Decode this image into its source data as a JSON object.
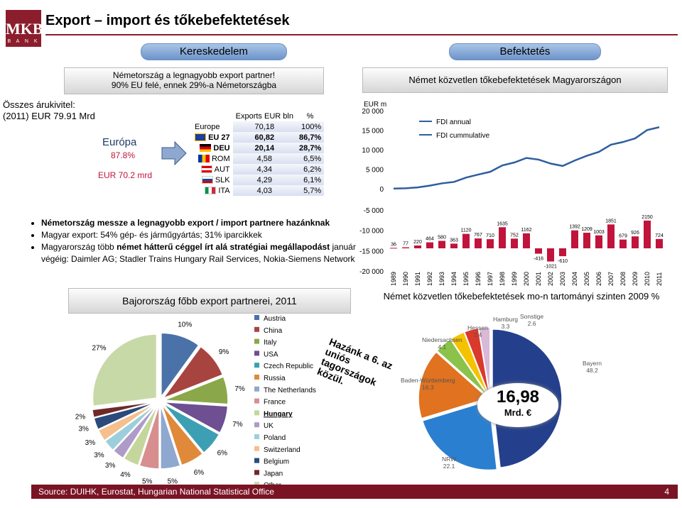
{
  "logo": {
    "text": "MKB",
    "sub": "B A N K"
  },
  "title": "Export – import és tőkebefektetések",
  "left_header": "Kereskedelem",
  "right_header": "Befektetés",
  "left_box": {
    "line1": "Németország a legnagyobb export partner!",
    "line2": "90% EU felé, ennek 29%-a Németországba"
  },
  "right_box": "Német közvetlen tőkebefektetések Magyarországon",
  "summary": {
    "line1": "Összes árukivitel:",
    "line2": "(2011)  EUR 79.91 Mrd",
    "europe": "Európa",
    "europe_pct": "87.8%",
    "europe_value": "EUR 70.2 mrd"
  },
  "exports_table": {
    "headers": [
      "Exports EUR bln",
      "%"
    ],
    "rows": [
      {
        "label": "Europe",
        "value": "70,18",
        "pct": "100%",
        "flag": ""
      },
      {
        "label": "EU 27",
        "value": "60,82",
        "pct": "86,7%",
        "flag": "eu"
      },
      {
        "label": "DEU",
        "value": "20,14",
        "pct": "28,7%",
        "flag": "de"
      },
      {
        "label": "ROM",
        "value": "4,58",
        "pct": "6,5%",
        "flag": "ro"
      },
      {
        "label": "AUT",
        "value": "4,34",
        "pct": "6,2%",
        "flag": "at"
      },
      {
        "label": "SLK",
        "value": "4,29",
        "pct": "6,1%",
        "flag": "sk"
      },
      {
        "label": "ITA",
        "value": "4,03",
        "pct": "5,7%",
        "flag": "it"
      }
    ]
  },
  "bullets": {
    "b1": "Németország messze a legnagyobb export / import partnere hazánknak",
    "b2": "Magyar export: 54% gép- és járműgyártás; 31% iparcikkek",
    "b3a": "Magyarország több ",
    "b3b": "német hátterű céggel írt alá stratégiai megállapodást",
    "b3c": " január végéig: Daimler AG; Stadler Trains Hungary Rail Services, Nokia-Siemens Network"
  },
  "pie_title": "Bajorország főbb export partnerei, 2011",
  "bottom_right_title": "Német közvetlen tőkebefektetések mo-n tartományi szinten 2009 %",
  "stamp_text": "Hazánk a 6. az uniós tagországok közül.",
  "bubble": {
    "value": "16,98",
    "unit": "Mrd. €"
  },
  "regions": [
    {
      "name": "Hamburg",
      "value": "3.3"
    },
    {
      "name": "Sonstige",
      "value": "2.6"
    },
    {
      "name": "Hessen",
      "value": "3.4"
    },
    {
      "name": "Niedersachsen",
      "value": "4.1"
    },
    {
      "name": "Bayern",
      "value": "48.2"
    },
    {
      "name": "Baden-Württemberg",
      "value": "16.3"
    },
    {
      "name": "NRW",
      "value": "22.1"
    }
  ],
  "source": "Source: DUIHK, Eurostat, Hungarian National Statistical Office",
  "page_number": "4",
  "chart_data": [
    {
      "type": "line",
      "title": "",
      "ylabel": "EUR m",
      "ylim": [
        0,
        20000
      ],
      "yticks": [
        "20 000",
        "15 000",
        "10 000",
        "5 000",
        "0"
      ],
      "series": [
        {
          "name": "FDI annual",
          "color": "#2e5e9e"
        },
        {
          "name": "FDI cummulative",
          "color": "#2e5e9e"
        }
      ],
      "x": [
        "1989",
        "1990",
        "1991",
        "1992",
        "1993",
        "1994",
        "1995",
        "1996",
        "1997",
        "1998",
        "1999",
        "2000",
        "2001",
        "2002",
        "2003",
        "2004",
        "2005",
        "2006",
        "2007",
        "2008",
        "2009",
        "2010",
        "2011"
      ],
      "cumulative": [
        36,
        113,
        333,
        797,
        1377,
        1740,
        2860,
        3627,
        4337,
        5972,
        6724,
        7886,
        7470,
        6449,
        5839,
        7231,
        8440,
        9443,
        11294,
        11973,
        12899,
        15049,
        15773
      ]
    },
    {
      "type": "bar",
      "title": "",
      "ylim": [
        -20000,
        0
      ],
      "yticks": [
        "-5 000",
        "-10 000",
        "-15 000",
        "-20 000"
      ],
      "categories": [
        "1989",
        "1990",
        "1991",
        "1992",
        "1993",
        "1994",
        "1995",
        "1996",
        "1997",
        "1998",
        "1999",
        "2000",
        "2001",
        "2002",
        "2003",
        "2004",
        "2005",
        "2006",
        "2007",
        "2008",
        "2009",
        "2010",
        "2011"
      ],
      "values": [
        36,
        77,
        220,
        464,
        580,
        363,
        1120,
        767,
        710,
        1635,
        752,
        1162,
        -416,
        -1021,
        -610,
        1392,
        1209,
        1003,
        1851,
        679,
        926,
        2150,
        724
      ],
      "labels": [
        "36",
        "77",
        "220",
        "464",
        "580",
        "363",
        "1120",
        "767",
        "710",
        "1635",
        "752",
        "1162",
        "-416",
        "-1021",
        "-610",
        "1392",
        "1209",
        "1003",
        "1851",
        "679",
        "926",
        "2150",
        "724"
      ],
      "color": "#c0143c"
    },
    {
      "type": "pie",
      "title": "Bajorország főbb export partnerei, 2011",
      "categories": [
        "Austria",
        "China",
        "Italy",
        "USA",
        "Czech Republic",
        "Russia",
        "The Netherlands",
        "France",
        "Hungary",
        "UK",
        "Poland",
        "Switzerland",
        "Belgium",
        "Japan",
        "Other"
      ],
      "values": [
        10,
        9,
        7,
        7,
        6,
        6,
        5,
        5,
        4,
        3,
        3,
        3,
        3,
        2,
        27
      ],
      "labels": [
        "10%",
        "9%",
        "7%",
        "7%",
        "6%",
        "6%",
        "5%",
        "5%",
        "4%",
        "3%",
        "3%",
        "3%",
        "3%",
        "2%",
        "27%"
      ],
      "colors": [
        "#4a72a8",
        "#a84440",
        "#8aa84a",
        "#6d4f92",
        "#3d9fb3",
        "#e0893a",
        "#8ea8cf",
        "#d88e8e",
        "#c4d69c",
        "#ae9bc8",
        "#9ccfdb",
        "#f5bf8e",
        "#2a4b7b",
        "#6e2a28",
        "#c8d9a8"
      ]
    },
    {
      "type": "pie",
      "title": "Német közvetlen tőkebefektetések mo-n tartományi szinten 2009 %",
      "categories": [
        "Bayern",
        "NRW",
        "Baden-Württemberg",
        "Niedersachsen",
        "Hessen",
        "Hamburg",
        "Sonstige"
      ],
      "values": [
        48.2,
        22.1,
        16.3,
        4.1,
        3.4,
        3.3,
        2.6
      ],
      "colors": [
        "#243f8c",
        "#2b7fd0",
        "#e07220",
        "#8bc34a",
        "#f5c200",
        "#d93a2b",
        "#d9b8d8"
      ]
    }
  ]
}
